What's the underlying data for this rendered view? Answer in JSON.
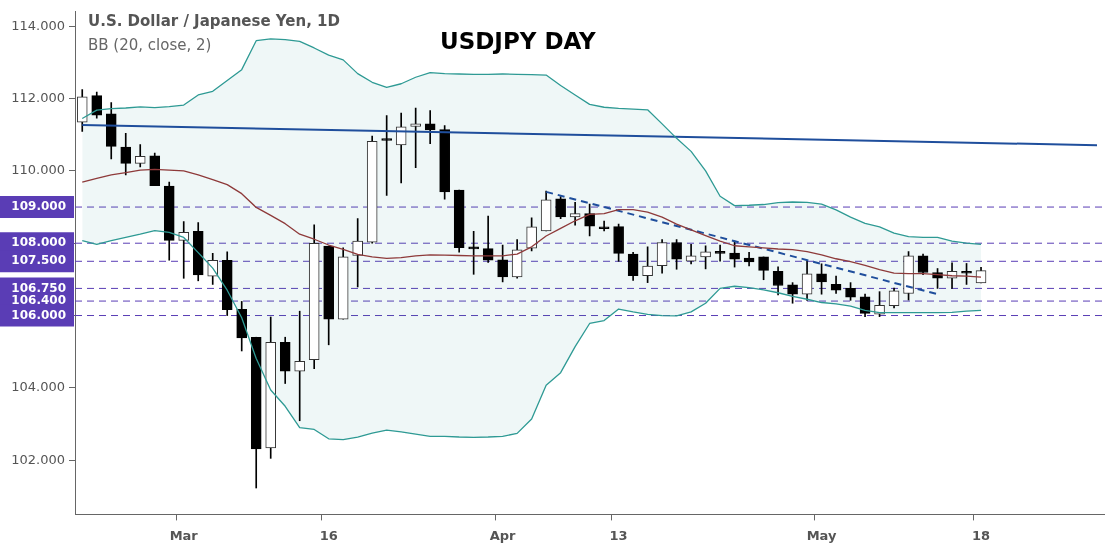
{
  "chart_data": {
    "type": "candlestick",
    "title": "USDJPY DAY",
    "subtitle": "U.S. Dollar / Japanese Yen, 1D",
    "annotations": [
      "BB (20, close, 2)"
    ],
    "categories": [
      null,
      null,
      null,
      null,
      null,
      null,
      null,
      "Mar",
      null,
      null,
      null,
      null,
      null,
      null,
      null,
      null,
      null,
      "16",
      null,
      null,
      null,
      null,
      null,
      null,
      null,
      null,
      null,
      null,
      null,
      "Apr",
      null,
      null,
      null,
      null,
      null,
      null,
      null,
      "13",
      null,
      null,
      null,
      null,
      null,
      null,
      null,
      null,
      null,
      null,
      null,
      null,
      null,
      "May",
      null,
      null,
      null,
      null,
      null,
      null,
      null,
      null,
      null,
      null,
      "18",
      null,
      null,
      null,
      null,
      null,
      null,
      null,
      null
    ],
    "color": "#000000",
    "colors": [
      "#333333",
      "#000000",
      "#000000",
      "#000000",
      "#333333",
      "#000000",
      "#000000",
      "#333333",
      "#000000",
      "#333333",
      "#000000",
      "#000000",
      "#000000",
      "#333333",
      "#000000",
      "#333333",
      "#333333",
      "#000000",
      "#333333",
      "#333333",
      "#333333",
      "#000000",
      "#333333",
      "#333333",
      "#000000",
      "#000000",
      "#000000",
      "#000000",
      "#000000",
      "#000000",
      "#333333",
      "#333333",
      "#333333",
      "#000000",
      "#333333",
      "#000000",
      "#000000",
      "#000000",
      "#000000",
      "#333333",
      "#333333",
      "#000000",
      "#333333",
      "#333333",
      "#000000",
      "#000000",
      "#000000",
      "#000000",
      "#000000",
      "#000000",
      "#333333",
      "#000000",
      "#000000",
      "#000000",
      "#000000",
      "#333333",
      "#333333",
      "#333333",
      "#000000",
      "#000000",
      "#333333",
      "#000000",
      "#333333",
      null,
      null,
      null,
      null,
      null,
      null,
      null,
      null
    ],
    "ohlc": [
      [
        111.35,
        112.25,
        111.09,
        112.05
      ],
      [
        112.08,
        112.18,
        111.46,
        111.54
      ],
      [
        111.58,
        111.89,
        110.33,
        110.68
      ],
      [
        110.66,
        111.04,
        109.89,
        110.21
      ],
      [
        110.21,
        110.73,
        110.11,
        110.4
      ],
      [
        110.42,
        110.49,
        109.59,
        109.59
      ],
      [
        109.58,
        109.69,
        107.53,
        108.08
      ],
      [
        108.08,
        108.6,
        107.03,
        108.3
      ],
      [
        108.33,
        108.57,
        106.96,
        107.12
      ],
      [
        107.09,
        107.72,
        106.86,
        107.53
      ],
      [
        107.53,
        107.76,
        106.0,
        106.16
      ],
      [
        106.17,
        106.39,
        105.02,
        105.38
      ],
      [
        105.4,
        105.4,
        101.23,
        102.31
      ],
      [
        102.34,
        105.96,
        102.05,
        105.26
      ],
      [
        105.26,
        105.4,
        104.12,
        104.46
      ],
      [
        104.46,
        106.12,
        103.09,
        104.73
      ],
      [
        104.78,
        108.51,
        104.53,
        108.0
      ],
      [
        107.92,
        107.92,
        105.19,
        105.9
      ],
      [
        105.9,
        107.87,
        105.9,
        107.62
      ],
      [
        107.66,
        108.68,
        106.79,
        108.06
      ],
      [
        108.03,
        110.96,
        108.0,
        110.82
      ],
      [
        110.88,
        111.53,
        109.32,
        110.84
      ],
      [
        110.72,
        111.6,
        109.67,
        111.22
      ],
      [
        111.23,
        111.74,
        110.09,
        111.3
      ],
      [
        111.3,
        111.67,
        110.75,
        111.13
      ],
      [
        111.14,
        111.25,
        109.22,
        109.42
      ],
      [
        109.47,
        109.47,
        107.75,
        107.88
      ],
      [
        107.9,
        108.33,
        107.14,
        107.84
      ],
      [
        107.85,
        108.75,
        107.47,
        107.53
      ],
      [
        107.54,
        107.95,
        106.93,
        107.07
      ],
      [
        107.07,
        108.1,
        107.03,
        107.82
      ],
      [
        107.86,
        108.7,
        107.79,
        108.45
      ],
      [
        108.34,
        109.44,
        108.34,
        109.2
      ],
      [
        109.23,
        109.29,
        108.68,
        108.73
      ],
      [
        108.73,
        109.13,
        108.5,
        108.82
      ],
      [
        108.82,
        109.08,
        108.2,
        108.47
      ],
      [
        108.42,
        108.61,
        108.34,
        108.4
      ],
      [
        108.46,
        108.53,
        107.5,
        107.72
      ],
      [
        107.7,
        107.75,
        106.97,
        107.1
      ],
      [
        107.1,
        107.9,
        106.91,
        107.37
      ],
      [
        107.38,
        108.1,
        107.17,
        108.02
      ],
      [
        108.02,
        108.1,
        107.28,
        107.56
      ],
      [
        107.5,
        107.97,
        107.43,
        107.65
      ],
      [
        107.62,
        107.93,
        107.29,
        107.76
      ],
      [
        107.76,
        107.95,
        107.5,
        107.72
      ],
      [
        107.73,
        108.06,
        107.34,
        107.56
      ],
      [
        107.59,
        107.75,
        107.37,
        107.48
      ],
      [
        107.62,
        107.62,
        106.99,
        107.25
      ],
      [
        107.22,
        107.35,
        106.57,
        106.83
      ],
      [
        106.85,
        106.91,
        106.34,
        106.59
      ],
      [
        106.59,
        107.52,
        106.42,
        107.15
      ],
      [
        107.15,
        107.43,
        106.59,
        106.93
      ],
      [
        106.86,
        107.09,
        106.61,
        106.7
      ],
      [
        106.75,
        106.91,
        106.42,
        106.51
      ],
      [
        106.52,
        106.59,
        105.97,
        106.06
      ],
      [
        106.04,
        106.66,
        105.97,
        106.28
      ],
      [
        106.27,
        106.76,
        106.21,
        106.68
      ],
      [
        106.61,
        107.77,
        106.43,
        107.65
      ],
      [
        107.65,
        107.7,
        107.13,
        107.19
      ],
      [
        107.19,
        107.3,
        106.75,
        107.03
      ],
      [
        107.03,
        107.46,
        106.75,
        107.22
      ],
      [
        107.22,
        107.44,
        106.86,
        107.17
      ],
      [
        106.9,
        107.33,
        106.9,
        107.24
      ],
      null,
      null,
      null,
      null,
      null,
      null,
      null,
      null
    ],
    "series": [
      {
        "type": "line",
        "color": "#2e9a94",
        "values": [
          111.45,
          111.68,
          111.72,
          111.74,
          111.77,
          111.75,
          111.78,
          111.82,
          112.1,
          112.2,
          112.5,
          112.8,
          113.6,
          113.65,
          113.63,
          113.58,
          113.4,
          113.2,
          113.07,
          112.69,
          112.45,
          112.31,
          112.41,
          112.59,
          112.72,
          112.69,
          112.68,
          112.67,
          112.67,
          112.68,
          112.67,
          112.66,
          112.65,
          112.36,
          112.1,
          111.84,
          111.76,
          111.73,
          111.71,
          111.69,
          111.3,
          110.9,
          110.54,
          110.0,
          109.3,
          109.04,
          109.05,
          109.07,
          109.12,
          109.14,
          109.13,
          109.08,
          108.92,
          108.72,
          108.55,
          108.45,
          108.28,
          108.18,
          108.16,
          108.16,
          108.06,
          108.0,
          107.97,
          null,
          null,
          null,
          null,
          null,
          null,
          null,
          null
        ]
      },
      {
        "type": "line",
        "color": "#8e3a3a",
        "upper": [
          111.45,
          111.68,
          111.72,
          111.74,
          111.77,
          111.75,
          111.78,
          111.82,
          112.1,
          112.2,
          112.5,
          112.8,
          113.6,
          113.65,
          113.63,
          113.58,
          113.4,
          113.2,
          113.07,
          112.69,
          112.45,
          112.31,
          112.41,
          112.59,
          112.72,
          112.69,
          112.68,
          112.67,
          112.67,
          112.68,
          112.67,
          112.66,
          112.65,
          112.36,
          112.1,
          111.84,
          111.76,
          111.73,
          111.71,
          111.69,
          111.3,
          110.9,
          110.54,
          110.0,
          109.3,
          109.04,
          109.05,
          109.07,
          109.12,
          109.14,
          109.13,
          109.08,
          108.92,
          108.72,
          108.55,
          108.45,
          108.28,
          108.18,
          108.16,
          108.16,
          108.06,
          108.0,
          107.97,
          null,
          null,
          null,
          null,
          null,
          null,
          null,
          null
        ],
        "lower": [
          108.07,
          107.97,
          108.07,
          108.16,
          108.25,
          108.35,
          108.3,
          108.16,
          107.74,
          107.31,
          106.7,
          105.94,
          104.81,
          103.94,
          103.49,
          102.9,
          102.85,
          102.59,
          102.57,
          102.64,
          102.75,
          102.83,
          102.78,
          102.72,
          102.66,
          102.66,
          102.64,
          102.63,
          102.64,
          102.66,
          102.74,
          103.14,
          104.07,
          104.42,
          105.14,
          105.78,
          105.86,
          106.18,
          106.1,
          106.03,
          106.0,
          105.99,
          106.1,
          106.34,
          106.75,
          106.81,
          106.77,
          106.71,
          106.63,
          106.53,
          106.45,
          106.36,
          106.32,
          106.26,
          106.14,
          106.08,
          106.08,
          106.08,
          106.08,
          106.08,
          106.09,
          106.12,
          106.14,
          null,
          null,
          null,
          null,
          null,
          null,
          null,
          null
        ],
        "values": [
          109.69,
          109.79,
          109.89,
          109.95,
          110.02,
          110.04,
          110.02,
          110.0,
          109.89,
          109.76,
          109.62,
          109.37,
          108.99,
          108.77,
          108.54,
          108.25,
          108.11,
          107.95,
          107.83,
          107.69,
          107.62,
          107.58,
          107.6,
          107.65,
          107.68,
          107.67,
          107.66,
          107.65,
          107.65,
          107.65,
          107.7,
          107.9,
          108.2,
          108.41,
          108.62,
          108.8,
          108.82,
          108.93,
          108.93,
          108.86,
          108.72,
          108.53,
          108.37,
          108.21,
          108.06,
          107.93,
          107.9,
          107.87,
          107.84,
          107.82,
          107.77,
          107.68,
          107.57,
          107.49,
          107.39,
          107.27,
          107.17,
          107.16,
          107.16,
          107.13,
          107.1,
          107.09,
          107.06,
          null,
          null,
          null,
          null,
          null,
          null,
          null,
          null
        ]
      },
      {
        "type": "line",
        "color": "#2e9a94",
        "values": [
          108.07,
          107.97,
          108.07,
          108.16,
          108.25,
          108.35,
          108.3,
          108.16,
          107.74,
          107.31,
          106.7,
          105.94,
          104.81,
          103.94,
          103.49,
          102.9,
          102.85,
          102.59,
          102.57,
          102.64,
          102.75,
          102.83,
          102.78,
          102.72,
          102.66,
          102.66,
          102.64,
          102.63,
          102.64,
          102.66,
          102.74,
          103.14,
          104.07,
          104.42,
          105.14,
          105.78,
          105.86,
          106.18,
          106.1,
          106.03,
          106.0,
          105.99,
          106.1,
          106.34,
          106.75,
          106.81,
          106.77,
          106.71,
          106.63,
          106.53,
          106.45,
          106.36,
          106.32,
          106.26,
          106.14,
          106.08,
          106.08,
          106.08,
          106.08,
          106.08,
          106.09,
          106.12,
          106.14,
          null,
          null,
          null,
          null,
          null,
          null,
          null,
          null
        ]
      },
      {
        "type": "line",
        "color": "#1f4e9c",
        "values": [
          111.27,
          null,
          null,
          null,
          null,
          null,
          null,
          null,
          null,
          null,
          null,
          null,
          null,
          null,
          null,
          null,
          null,
          null,
          null,
          null,
          null,
          null,
          null,
          null,
          null,
          null,
          null,
          null,
          null,
          null,
          null,
          null,
          null,
          null,
          null,
          null,
          null,
          null,
          null,
          null,
          null,
          null,
          null,
          null,
          null,
          null,
          null,
          null,
          null,
          null,
          null,
          null,
          null,
          null,
          null,
          null,
          null,
          null,
          null,
          null,
          null,
          null,
          null,
          null,
          null,
          null,
          null,
          null,
          null,
          null,
          110.71
        ]
      },
      {
        "type": "line",
        "color": "#1f4e9c",
        "line_style": "dashed",
        "values": [
          null,
          null,
          null,
          null,
          null,
          null,
          null,
          null,
          null,
          null,
          null,
          null,
          null,
          null,
          null,
          null,
          null,
          null,
          null,
          null,
          null,
          null,
          null,
          null,
          null,
          null,
          null,
          null,
          null,
          null,
          null,
          null,
          109.42,
          null,
          null,
          null,
          null,
          null,
          null,
          null,
          null,
          null,
          null,
          null,
          null,
          null,
          null,
          null,
          null,
          null,
          null,
          null,
          null,
          null,
          null,
          null,
          null,
          null,
          null,
          106.59,
          null,
          null,
          null,
          null,
          null,
          null,
          null,
          null,
          null,
          null,
          null
        ]
      }
    ],
    "ylim": [
      100.5,
      114.4
    ],
    "yticks": [
      {
        "value": 102,
        "label": "102.000"
      },
      {
        "value": 104,
        "label": "104.000"
      },
      {
        "value": 106,
        "label": null
      },
      {
        "value": 108,
        "label": null
      },
      {
        "value": 110,
        "label": "110.000"
      },
      {
        "value": 112,
        "label": "112.000"
      },
      {
        "value": 114,
        "label": "114.000"
      }
    ],
    "ref_lines": [
      {
        "axis": "y",
        "value": 109,
        "label": "109.000",
        "color": "#5a3db5",
        "line_style": "dashed"
      },
      {
        "axis": "y",
        "value": 108,
        "label": "108.000",
        "color": "#5a3db5",
        "line_style": "dashed"
      },
      {
        "axis": "y",
        "value": 107.5,
        "label": "107.500",
        "color": "#5a3db5",
        "line_style": "dashed"
      },
      {
        "axis": "y",
        "value": 106.75,
        "label": "106.750",
        "color": "#5a3db5",
        "line_style": "dashed"
      },
      {
        "axis": "y",
        "value": 106.4,
        "label": "106.400",
        "color": "#5a3db5",
        "line_style": "dashed"
      },
      {
        "axis": "y",
        "value": 106,
        "label": "106.000",
        "color": "#5a3db5",
        "line_style": "dashed"
      }
    ]
  }
}
